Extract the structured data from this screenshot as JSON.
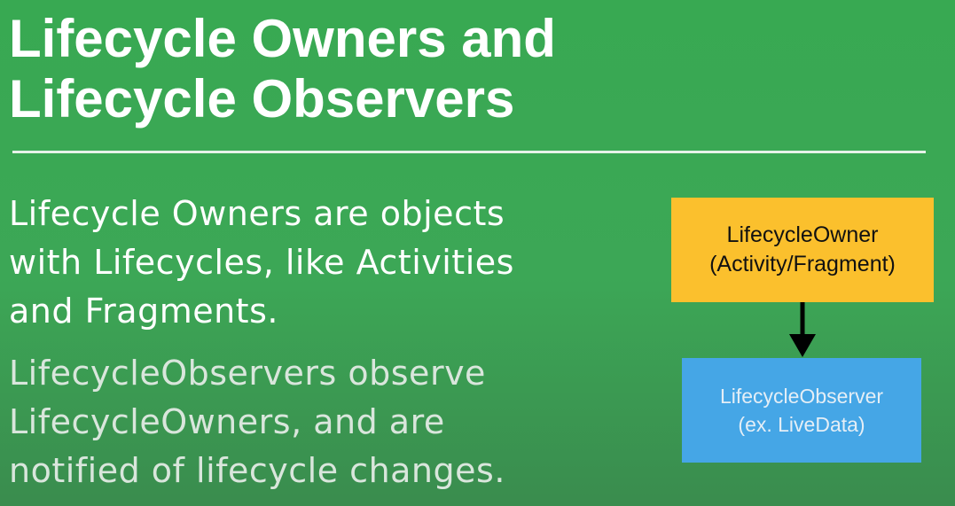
{
  "slide": {
    "title_lines": [
      "Lifecycle Owners and",
      "Lifecycle Observers"
    ],
    "bullets": [
      {
        "lines": [
          "Lifecycle Owners are objects",
          "with Lifecycles, like Activities",
          "and Fragments."
        ]
      },
      {
        "lines": [
          "LifecycleObservers observe",
          "LifecycleOwners, and are",
          "notified of lifecycle changes."
        ]
      }
    ]
  },
  "diagram": {
    "owner_box": {
      "lines": [
        "LifecycleOwner",
        "(Activity/Fragment)"
      ],
      "color": "#fbc02d"
    },
    "observer_box": {
      "lines": [
        "LifecycleObserver",
        "(ex. LiveData)"
      ],
      "color": "#45a6e6"
    },
    "arrow_color": "#000000"
  },
  "colors": {
    "background": "#3ca756",
    "text": "#ffffff"
  }
}
